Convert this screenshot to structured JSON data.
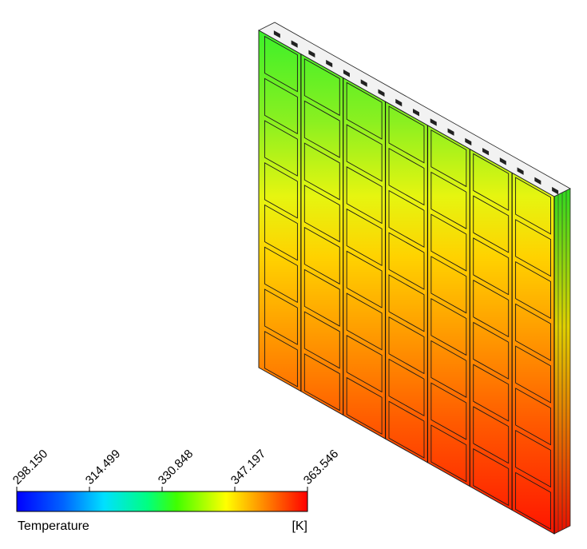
{
  "legend": {
    "quantity": "Temperature",
    "unit": "[K]",
    "ticks": [
      "298.150",
      "314.499",
      "330.848",
      "347.197",
      "363.546"
    ],
    "min": 298.15,
    "max": 363.546,
    "colormap": [
      "#0000ff",
      "#00b4ff",
      "#00ffa0",
      "#30ff00",
      "#ffff00",
      "#ff8c00",
      "#ff0000"
    ]
  },
  "model": {
    "columns": 7,
    "rows": 8,
    "top_temperature_k": 335,
    "bottom_temperature_k": 363,
    "top_color": "#3cf02a",
    "middle_color": "#ffe800",
    "bottom_color": "#ff1a00"
  }
}
